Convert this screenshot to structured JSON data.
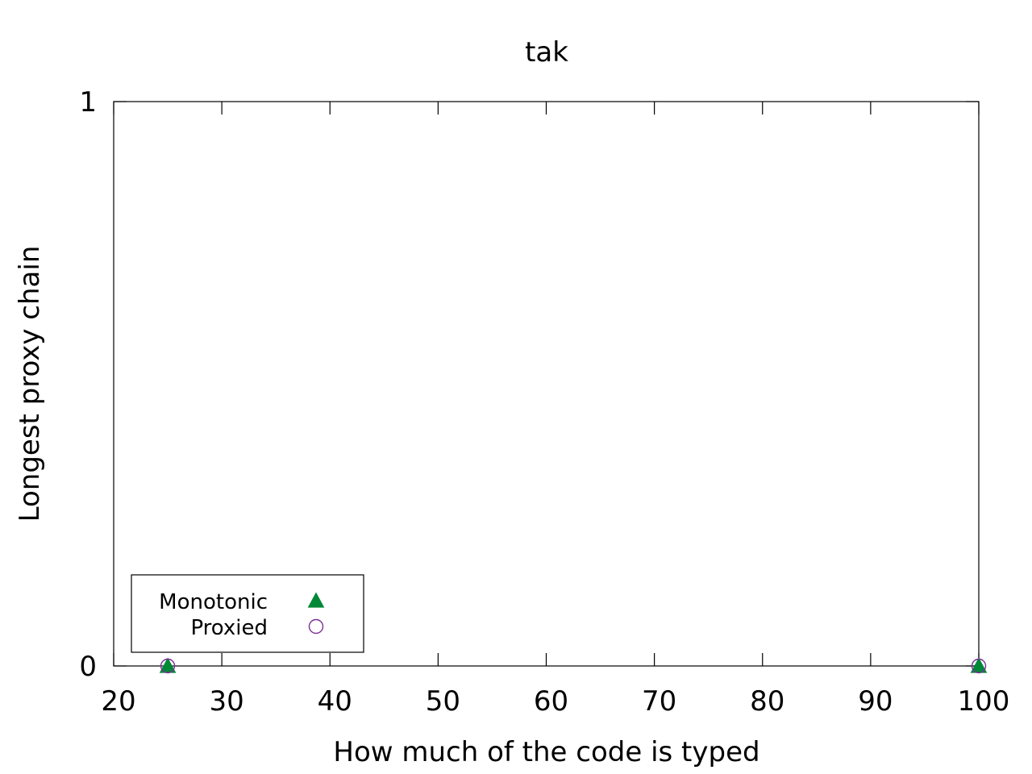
{
  "chart_data": {
    "type": "scatter",
    "title": "tak",
    "xlabel": "How much of the code is typed",
    "ylabel": "Longest proxy chain",
    "xlim": [
      20,
      100
    ],
    "ylim": [
      0,
      1
    ],
    "xticks": [
      20,
      30,
      40,
      50,
      60,
      70,
      80,
      90,
      100
    ],
    "yticks": [
      0,
      1
    ],
    "grid": false,
    "legend": {
      "placement": "bottom-left",
      "boxed": true
    },
    "series": [
      {
        "name": "Monotonic",
        "marker": "filled-triangle",
        "color": "#008837",
        "points": [
          {
            "x": 25,
            "y": 0
          },
          {
            "x": 100,
            "y": 0
          }
        ]
      },
      {
        "name": "Proxied",
        "marker": "open-circle",
        "color": "#7b3294",
        "points": [
          {
            "x": 25,
            "y": 0
          },
          {
            "x": 100,
            "y": 0
          }
        ]
      }
    ]
  }
}
